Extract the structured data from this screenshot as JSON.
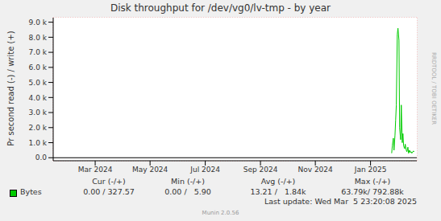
{
  "chart_data": {
    "type": "line",
    "title": "Disk throughput for /dev/vg0/lv-tmp - by year",
    "y_label": "Pr second read (-) / write (+)",
    "xlim": [
      2024.04,
      2025.14
    ],
    "xticks": [
      {
        "value": 2024.167,
        "label": "Mar 2024"
      },
      {
        "value": 2024.333,
        "label": "May 2024"
      },
      {
        "value": 2024.5,
        "label": "Jul 2024"
      },
      {
        "value": 2024.667,
        "label": "Sep 2024"
      },
      {
        "value": 2024.833,
        "label": "Nov 2024"
      },
      {
        "value": 2025.0,
        "label": "Jan 2025"
      }
    ],
    "ylim": [
      -200,
      9300
    ],
    "yticks": [
      {
        "value": 0,
        "label": "0.0"
      },
      {
        "value": 1000,
        "label": "1.0 k"
      },
      {
        "value": 2000,
        "label": "2.0 k"
      },
      {
        "value": 3000,
        "label": "3.0 k"
      },
      {
        "value": 4000,
        "label": "4.0 k"
      },
      {
        "value": 5000,
        "label": "5.0 k"
      },
      {
        "value": 6000,
        "label": "6.0 k"
      },
      {
        "value": 7000,
        "label": "7.0 k"
      },
      {
        "value": 8000,
        "label": "8.0 k"
      },
      {
        "value": 9000,
        "label": "9.0 k"
      }
    ],
    "grid": true,
    "x": [
      2025.064,
      2025.066,
      2025.069,
      2025.071,
      2025.074,
      2025.076,
      2025.078,
      2025.081,
      2025.083,
      2025.086,
      2025.088,
      2025.091,
      2025.093,
      2025.096,
      2025.098,
      2025.1,
      2025.103,
      2025.105,
      2025.108,
      2025.11,
      2025.113,
      2025.115,
      2025.118,
      2025.12,
      2025.123,
      2025.125,
      2025.13,
      2025.132
    ],
    "series": [
      {
        "name": "Bytes",
        "color": "#00cc00",
        "values": [
          300,
          800,
          1300,
          500,
          1500,
          2500,
          3500,
          8200,
          8600,
          7800,
          2000,
          1200,
          3500,
          1000,
          1600,
          800,
          600,
          900,
          500,
          400,
          700,
          300,
          500,
          350,
          400,
          300,
          450,
          400
        ]
      }
    ],
    "stats": {
      "headers": [
        "Cur (-/+)",
        "Min (-/+)",
        "Avg (-/+)",
        "Max (-/+)"
      ],
      "rows": [
        {
          "name": "Bytes",
          "cells": [
            "0.00 / 327.57",
            "0.00 /   5.90",
            "13.21 /   1.84k",
            "63.79k/ 792.88k"
          ]
        }
      ]
    },
    "footer": "Last update: Wed Mar  5 23:20:08 2025",
    "credit": "Munin 2.0.56",
    "side_label": "RRDTOOL / TOBI OETIKER"
  }
}
